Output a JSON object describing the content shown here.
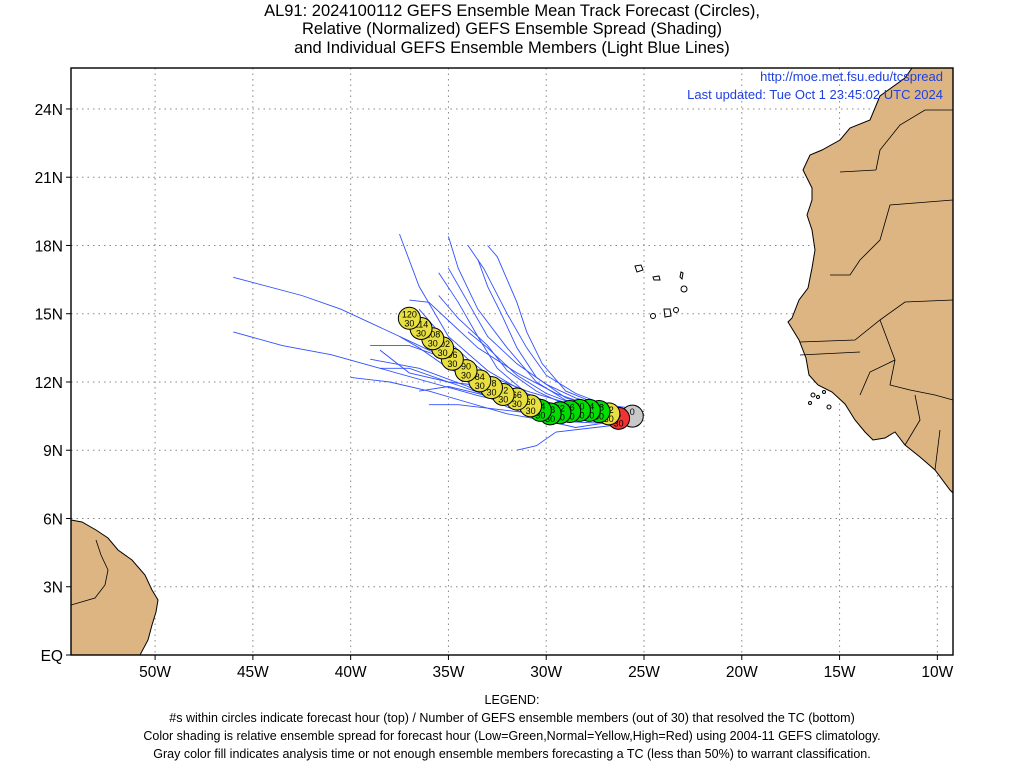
{
  "title_lines": [
    "AL91: 2024100112 GEFS Ensemble Mean Track Forecast (Circles),",
    "Relative (Normalized) GEFS Ensemble Spread (Shading)",
    "and Individual GEFS Ensemble Members (Light Blue Lines)"
  ],
  "source_url": "http://moe.met.fsu.edu/tcspread",
  "last_updated": "Last updated: Tue Oct 1 23:45:02 UTC 2024",
  "legend": {
    "heading": "LEGEND:",
    "lines": [
      "#s within circles indicate forecast hour (top) / Number of GEFS ensemble members (out of 30) that resolved the TC (bottom)",
      "Color shading is relative ensemble spread for forecast hour (Low=Green,Normal=Yellow,High=Red) using 2004-11 GEFS climatology.",
      "Gray color fill indicates analysis time or not enough ensemble members forecasting a TC (less than 50%) to warrant classification."
    ]
  },
  "colors": {
    "land": "#dcb583",
    "ocean": "#ffffff",
    "member_lines": "#3050ff",
    "grid": "#888888",
    "low_spread": "#00dd00",
    "normal_spread": "#e8e040",
    "high_spread": "#ee3333",
    "analysis": "#c8c8c8",
    "link_text": "#2040e0"
  },
  "map": {
    "lon_range": [
      -54.3,
      -9.2
    ],
    "lat_range": [
      0,
      25.8
    ],
    "x_ticks": [
      {
        "lon": -50,
        "label": "50W"
      },
      {
        "lon": -45,
        "label": "45W"
      },
      {
        "lon": -40,
        "label": "40W"
      },
      {
        "lon": -35,
        "label": "35W"
      },
      {
        "lon": -30,
        "label": "30W"
      },
      {
        "lon": -25,
        "label": "25W"
      },
      {
        "lon": -20,
        "label": "20W"
      },
      {
        "lon": -15,
        "label": "15W"
      },
      {
        "lon": -10,
        "label": "10W"
      }
    ],
    "y_ticks": [
      {
        "lat": 0,
        "label": "EQ"
      },
      {
        "lat": 3,
        "label": "3N"
      },
      {
        "lat": 6,
        "label": "6N"
      },
      {
        "lat": 9,
        "label": "9N"
      },
      {
        "lat": 12,
        "label": "12N"
      },
      {
        "lat": 15,
        "label": "15N"
      },
      {
        "lat": 18,
        "label": "18N"
      },
      {
        "lat": 21,
        "label": "21N"
      },
      {
        "lat": 24,
        "label": "24N"
      }
    ]
  },
  "track_points": [
    {
      "hour": "0",
      "members": "",
      "lon": -25.6,
      "lat": 10.5,
      "spread": "analysis"
    },
    {
      "hour": "6",
      "members": "30",
      "lon": -26.3,
      "lat": 10.4,
      "spread": "high"
    },
    {
      "hour": "12",
      "members": "30",
      "lon": -26.8,
      "lat": 10.6,
      "spread": "normal"
    },
    {
      "hour": "18",
      "members": "30",
      "lon": -27.3,
      "lat": 10.7,
      "spread": "low"
    },
    {
      "hour": "24",
      "members": "30",
      "lon": -27.8,
      "lat": 10.75,
      "spread": "low"
    },
    {
      "hour": "30",
      "members": "30",
      "lon": -28.3,
      "lat": 10.75,
      "spread": "low"
    },
    {
      "hour": "36",
      "members": "30",
      "lon": -28.8,
      "lat": 10.7,
      "spread": "low"
    },
    {
      "hour": "42",
      "members": "30",
      "lon": -29.3,
      "lat": 10.65,
      "spread": "low"
    },
    {
      "hour": "48",
      "members": "30",
      "lon": -29.8,
      "lat": 10.6,
      "spread": "low"
    },
    {
      "hour": "54",
      "members": "30",
      "lon": -30.3,
      "lat": 10.75,
      "spread": "low"
    },
    {
      "hour": "60",
      "members": "30",
      "lon": -30.8,
      "lat": 10.95,
      "spread": "normal"
    },
    {
      "hour": "66",
      "members": "30",
      "lon": -31.5,
      "lat": 11.25,
      "spread": "normal"
    },
    {
      "hour": "72",
      "members": "30",
      "lon": -32.2,
      "lat": 11.45,
      "spread": "normal"
    },
    {
      "hour": "78",
      "members": "30",
      "lon": -32.8,
      "lat": 11.75,
      "spread": "normal"
    },
    {
      "hour": "84",
      "members": "30",
      "lon": -33.4,
      "lat": 12.05,
      "spread": "normal"
    },
    {
      "hour": "90",
      "members": "30",
      "lon": -34.1,
      "lat": 12.5,
      "spread": "normal"
    },
    {
      "hour": "96",
      "members": "30",
      "lon": -34.8,
      "lat": 13.0,
      "spread": "normal"
    },
    {
      "hour": "102",
      "members": "30",
      "lon": -35.3,
      "lat": 13.5,
      "spread": "normal"
    },
    {
      "hour": "108",
      "members": "30",
      "lon": -35.8,
      "lat": 13.9,
      "spread": "normal"
    },
    {
      "hour": "114",
      "members": "30",
      "lon": -36.4,
      "lat": 14.35,
      "spread": "normal"
    },
    {
      "hour": "120",
      "members": "30",
      "lon": -37.0,
      "lat": 14.8,
      "spread": "normal"
    }
  ],
  "member_tracks": [
    [
      [
        -25.0,
        10.7
      ],
      [
        -27,
        10.8
      ],
      [
        -29,
        11.1
      ],
      [
        -31,
        11.6
      ],
      [
        -33,
        12.3
      ],
      [
        -35,
        13.0
      ],
      [
        -37,
        13.6
      ],
      [
        -39,
        13.6
      ]
    ],
    [
      [
        -25.0,
        10.6
      ],
      [
        -27,
        10.6
      ],
      [
        -29,
        10.8
      ],
      [
        -31,
        11.5
      ],
      [
        -33,
        12.5
      ],
      [
        -35,
        14.0
      ],
      [
        -36.5,
        16.2
      ],
      [
        -37.5,
        18.5
      ]
    ],
    [
      [
        -25.2,
        10.5
      ],
      [
        -27,
        10.7
      ],
      [
        -29,
        11.2
      ],
      [
        -30.5,
        12.0
      ],
      [
        -32,
        13.5
      ],
      [
        -33.5,
        15.2
      ],
      [
        -34.5,
        17.0
      ],
      [
        -35,
        18.4
      ]
    ],
    [
      [
        -25.3,
        10.6
      ],
      [
        -27,
        10.9
      ],
      [
        -29,
        11.6
      ],
      [
        -30.2,
        12.8
      ],
      [
        -31,
        14.2
      ],
      [
        -31.5,
        15.5
      ],
      [
        -32.5,
        17.5
      ],
      [
        -33,
        18.0
      ]
    ],
    [
      [
        -25.4,
        10.4
      ],
      [
        -27.5,
        10.6
      ],
      [
        -29.5,
        10.9
      ],
      [
        -31.5,
        11.4
      ],
      [
        -33.5,
        12.2
      ],
      [
        -35.5,
        13.2
      ],
      [
        -38,
        14.2
      ],
      [
        -40.5,
        15.2
      ],
      [
        -42.5,
        15.8
      ],
      [
        -46,
        16.6
      ]
    ],
    [
      [
        -25.2,
        10.2
      ],
      [
        -27.5,
        10.4
      ],
      [
        -29.5,
        10.6
      ],
      [
        -31.5,
        11.0
      ],
      [
        -33.5,
        11.4
      ],
      [
        -36,
        12.0
      ],
      [
        -38.5,
        12.6
      ],
      [
        -41,
        13.2
      ],
      [
        -43.5,
        13.6
      ],
      [
        -46,
        14.2
      ]
    ],
    [
      [
        -25.3,
        10.3
      ],
      [
        -27.5,
        10.2
      ],
      [
        -30,
        10.3
      ],
      [
        -32,
        10.6
      ],
      [
        -34,
        11.1
      ],
      [
        -36,
        11.6
      ],
      [
        -38,
        12.0
      ],
      [
        -40,
        12.2
      ]
    ],
    [
      [
        -25.5,
        10.2
      ],
      [
        -27.5,
        10.0
      ],
      [
        -29.5,
        9.8
      ],
      [
        -30.5,
        9.2
      ],
      [
        -31.5,
        9.0
      ]
    ],
    [
      [
        -25.5,
        10.5
      ],
      [
        -27.5,
        10.5
      ],
      [
        -29.5,
        10.8
      ],
      [
        -31,
        11.3
      ],
      [
        -32.5,
        12.0
      ],
      [
        -34,
        13.0
      ],
      [
        -35.5,
        14.2
      ],
      [
        -36.5,
        15.2
      ]
    ],
    [
      [
        -25.4,
        10.6
      ],
      [
        -27,
        10.7
      ],
      [
        -29,
        10.9
      ],
      [
        -31,
        11.2
      ],
      [
        -33,
        11.8
      ],
      [
        -35,
        12.6
      ],
      [
        -36.5,
        13.5
      ],
      [
        -37.5,
        14.0
      ]
    ],
    [
      [
        -25.4,
        10.7
      ],
      [
        -27,
        10.9
      ],
      [
        -28.5,
        11.3
      ],
      [
        -30,
        11.9
      ],
      [
        -31.5,
        12.8
      ],
      [
        -33,
        14.0
      ],
      [
        -34,
        15.5
      ],
      [
        -35,
        17.0
      ]
    ],
    [
      [
        -25.2,
        10.8
      ],
      [
        -27,
        11.0
      ],
      [
        -28.5,
        11.5
      ],
      [
        -30,
        12.3
      ],
      [
        -31,
        13.5
      ],
      [
        -32,
        15.0
      ],
      [
        -33.2,
        17.0
      ],
      [
        -34,
        18.0
      ]
    ],
    [
      [
        -25.3,
        10.4
      ],
      [
        -27,
        10.4
      ],
      [
        -29,
        10.5
      ],
      [
        -31,
        10.8
      ],
      [
        -33,
        11.4
      ],
      [
        -35,
        12.0
      ],
      [
        -37,
        12.6
      ],
      [
        -38.5,
        12.6
      ]
    ],
    [
      [
        -25.5,
        10.4
      ],
      [
        -27,
        10.2
      ],
      [
        -28.5,
        10.0
      ],
      [
        -30,
        10.3
      ],
      [
        -32,
        10.9
      ],
      [
        -34,
        11.8
      ],
      [
        -36.5,
        12.6
      ],
      [
        -39,
        13.0
      ]
    ],
    [
      [
        -25.3,
        10.5
      ],
      [
        -27,
        10.6
      ],
      [
        -29,
        11.0
      ],
      [
        -30.5,
        11.6
      ],
      [
        -32,
        12.5
      ],
      [
        -33,
        13.6
      ],
      [
        -34.5,
        14.8
      ],
      [
        -35.5,
        15.8
      ]
    ],
    [
      [
        -25.6,
        10.6
      ],
      [
        -27.5,
        10.9
      ],
      [
        -29.5,
        11.5
      ],
      [
        -31.5,
        12.4
      ],
      [
        -33.5,
        13.5
      ],
      [
        -35,
        14.7
      ],
      [
        -36,
        15.5
      ],
      [
        -37,
        15.6
      ]
    ],
    [
      [
        -25.4,
        10.5
      ],
      [
        -27.5,
        10.7
      ],
      [
        -29.5,
        11.0
      ],
      [
        -31,
        11.4
      ],
      [
        -33,
        11.8
      ],
      [
        -35,
        12.0
      ],
      [
        -37,
        12.4
      ],
      [
        -38.5,
        13.4
      ]
    ],
    [
      [
        -25.2,
        10.6
      ],
      [
        -27.5,
        10.5
      ],
      [
        -29.5,
        10.7
      ],
      [
        -31.5,
        11.0
      ],
      [
        -33.5,
        11.5
      ],
      [
        -35,
        11.8
      ],
      [
        -36.5,
        11.6
      ]
    ],
    [
      [
        -25.5,
        10.3
      ],
      [
        -27.5,
        10.5
      ],
      [
        -29.5,
        10.9
      ],
      [
        -31,
        11.5
      ],
      [
        -32.5,
        12.6
      ],
      [
        -33.5,
        14.0
      ],
      [
        -34.5,
        15.5
      ],
      [
        -35.5,
        16.8
      ]
    ],
    [
      [
        -25.4,
        10.7
      ],
      [
        -27,
        10.8
      ],
      [
        -28.5,
        11.0
      ],
      [
        -30,
        11.5
      ],
      [
        -31.5,
        12.3
      ],
      [
        -33,
        13.5
      ],
      [
        -34,
        14.2
      ]
    ],
    [
      [
        -25.2,
        10.4
      ],
      [
        -27,
        10.3
      ],
      [
        -29,
        10.4
      ],
      [
        -30.5,
        10.6
      ],
      [
        -32.5,
        10.8
      ],
      [
        -34.5,
        11.0
      ],
      [
        -36,
        11.0
      ]
    ],
    [
      [
        -25.3,
        10.6
      ],
      [
        -27,
        10.8
      ],
      [
        -29,
        11.3
      ],
      [
        -30.5,
        12.2
      ],
      [
        -31.5,
        13.5
      ],
      [
        -32.3,
        15.0
      ],
      [
        -33,
        16.2
      ],
      [
        -33.5,
        17.4
      ]
    ]
  ]
}
